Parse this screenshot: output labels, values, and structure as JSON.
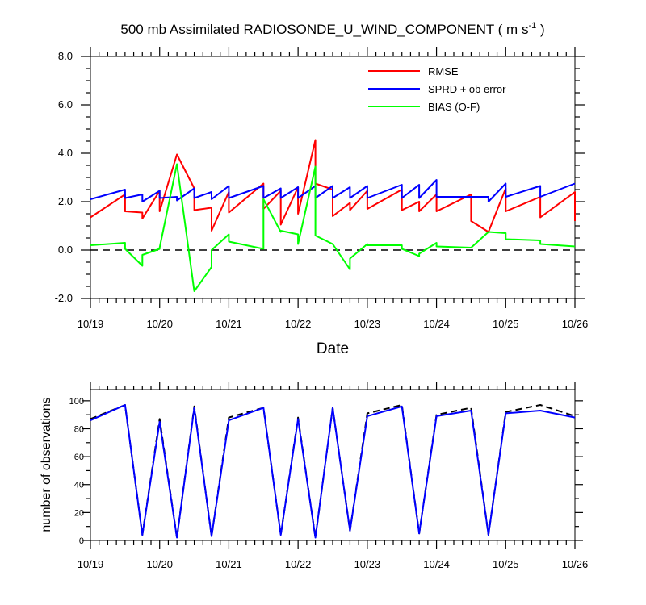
{
  "chart_data": [
    {
      "type": "line",
      "title": "500 mb Assimilated RADIOSONDE_U_WIND_COMPONENT ( m s",
      "title_units_exponent": "-1",
      "title_close": " )",
      "xlabel": "Date",
      "ylabel": "",
      "xlim": [
        0,
        7
      ],
      "ylim": [
        -2.0,
        8.0
      ],
      "x_ticks": [
        0,
        1,
        2,
        3,
        4,
        5,
        6,
        7
      ],
      "x_tick_labels": [
        "10/19",
        "10/20",
        "10/21",
        "10/22",
        "10/23",
        "10/24",
        "10/25",
        "10/26"
      ],
      "y_ticks": [
        -2.0,
        0.0,
        2.0,
        4.0,
        6.0,
        8.0
      ],
      "y_tick_labels": [
        "-2.0",
        "0.0",
        "2.0",
        "4.0",
        "6.0",
        "8.0"
      ],
      "reference_line": {
        "y": 0.0,
        "style": "dashed",
        "color": "#000000"
      },
      "legend_position": "top-right",
      "series": [
        {
          "name": "RMSE",
          "color": "#ff0000",
          "x": [
            0,
            0.5,
            0.5,
            0.75,
            0.75,
            1.0,
            1.0,
            1.25,
            1.5,
            1.5,
            1.75,
            1.75,
            2.0,
            2.0,
            2.5,
            2.5,
            2.75,
            2.75,
            3.0,
            3.0,
            3.25,
            3.25,
            3.5,
            3.5,
            3.75,
            3.75,
            4.0,
            4.0,
            4.5,
            4.5,
            4.75,
            4.75,
            5.0,
            5.0,
            5.5,
            5.5,
            5.75,
            6.0,
            6.0,
            6.5,
            6.5,
            7.0,
            7.0
          ],
          "values": [
            1.35,
            2.3,
            1.6,
            1.55,
            1.3,
            2.45,
            1.6,
            3.95,
            2.55,
            1.65,
            1.75,
            0.8,
            2.4,
            1.55,
            2.75,
            1.7,
            2.45,
            1.05,
            2.6,
            1.5,
            4.55,
            2.75,
            2.5,
            1.4,
            1.95,
            1.65,
            2.45,
            1.7,
            2.5,
            1.65,
            2.0,
            1.6,
            2.3,
            1.6,
            2.3,
            1.2,
            0.75,
            2.55,
            1.6,
            2.2,
            1.35,
            2.4,
            1.2
          ]
        },
        {
          "name": "SPRD + ob error",
          "color": "#0000ff",
          "x": [
            0,
            0.5,
            0.5,
            0.75,
            0.75,
            1.0,
            1.0,
            1.25,
            1.25,
            1.5,
            1.5,
            1.75,
            1.75,
            2.0,
            2.0,
            2.5,
            2.5,
            2.75,
            2.75,
            3.0,
            3.0,
            3.25,
            3.25,
            3.5,
            3.5,
            3.75,
            3.75,
            4.0,
            4.0,
            4.5,
            4.5,
            4.75,
            4.75,
            5.0,
            5.0,
            5.5,
            5.5,
            5.75,
            5.75,
            6.0,
            6.0,
            6.5,
            6.5,
            7.0
          ],
          "values": [
            2.1,
            2.5,
            2.15,
            2.3,
            2.0,
            2.45,
            2.15,
            2.2,
            2.05,
            2.55,
            2.15,
            2.4,
            2.1,
            2.65,
            2.15,
            2.65,
            2.15,
            2.55,
            2.15,
            2.6,
            2.15,
            2.65,
            2.15,
            2.65,
            2.15,
            2.6,
            2.15,
            2.65,
            2.15,
            2.7,
            2.15,
            2.7,
            2.15,
            2.9,
            2.2,
            2.2,
            2.2,
            2.2,
            2.0,
            2.75,
            2.2,
            2.65,
            2.2,
            2.75
          ]
        },
        {
          "name": "BIAS (O-F)",
          "color": "#00ff00",
          "x": [
            0,
            0.5,
            0.5,
            0.75,
            0.75,
            1.0,
            1.0,
            1.25,
            1.5,
            1.75,
            1.75,
            2.0,
            2.0,
            2.5,
            2.5,
            2.75,
            2.75,
            3.0,
            3.0,
            3.25,
            3.25,
            3.5,
            3.5,
            3.75,
            3.75,
            4.0,
            4.0,
            4.5,
            4.5,
            4.75,
            4.75,
            5.0,
            5.0,
            5.5,
            5.5,
            5.75,
            5.75,
            6.0,
            6.0,
            6.5,
            6.5,
            7.0
          ],
          "values": [
            0.2,
            0.3,
            0.05,
            -0.65,
            -0.2,
            0.05,
            0.1,
            3.55,
            -1.7,
            -0.7,
            0.0,
            0.65,
            0.35,
            0.05,
            2.1,
            0.75,
            0.8,
            0.65,
            0.25,
            3.45,
            0.6,
            0.25,
            0.25,
            -0.8,
            -0.35,
            0.25,
            0.2,
            0.2,
            0.05,
            -0.25,
            -0.15,
            0.3,
            0.15,
            0.1,
            0.1,
            0.75,
            0.75,
            0.7,
            0.45,
            0.4,
            0.25,
            0.15
          ]
        }
      ]
    },
    {
      "type": "line",
      "title": "",
      "xlabel": "",
      "ylabel": "number of observations",
      "xlim": [
        0,
        7
      ],
      "ylim": [
        0,
        108
      ],
      "x_ticks": [
        0,
        1,
        2,
        3,
        4,
        5,
        6,
        7
      ],
      "x_tick_labels": [
        "10/19",
        "10/20",
        "10/21",
        "10/22",
        "10/23",
        "10/24",
        "10/25",
        "10/26"
      ],
      "y_ticks": [
        0,
        20,
        40,
        60,
        80,
        100
      ],
      "y_tick_labels": [
        "0",
        "20",
        "40",
        "60",
        "80",
        "100"
      ],
      "grid": false,
      "series": [
        {
          "style": "dashed",
          "color": "#000000",
          "x": [
            0,
            0.5,
            0.75,
            1.0,
            1.25,
            1.5,
            1.75,
            2.0,
            2.5,
            2.75,
            3.0,
            3.25,
            3.5,
            3.75,
            4.0,
            4.5,
            4.75,
            5.0,
            5.5,
            5.75,
            6.0,
            6.5,
            7.0
          ],
          "values": [
            87,
            97,
            4,
            87,
            2,
            96,
            3,
            88,
            95,
            4,
            88,
            2,
            95,
            7,
            91,
            97,
            5,
            90,
            95,
            4,
            92,
            97,
            89
          ]
        },
        {
          "style": "solid",
          "color": "#0000ff",
          "x": [
            0,
            0.5,
            0.75,
            1.0,
            1.25,
            1.5,
            1.75,
            2.0,
            2.5,
            2.75,
            3.0,
            3.25,
            3.5,
            3.75,
            4.0,
            4.5,
            4.75,
            5.0,
            5.5,
            5.75,
            6.0,
            6.5,
            7.0
          ],
          "values": [
            86,
            97,
            4,
            85,
            2,
            95,
            3,
            86,
            95,
            4,
            87,
            2,
            95,
            7,
            89,
            96,
            5,
            89,
            93,
            4,
            91,
            93,
            88
          ]
        }
      ]
    }
  ]
}
